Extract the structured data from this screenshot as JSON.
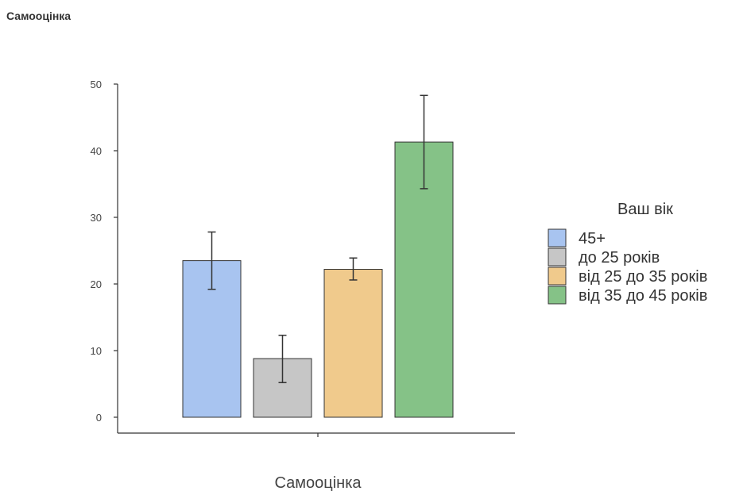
{
  "page_title": "Самооцінка",
  "chart_data": {
    "type": "bar",
    "title": "Самооцінка",
    "categories": [
      "Самооцінка"
    ],
    "xlabel": "Самооцінка",
    "ylabel": "",
    "ylim": [
      0,
      50
    ],
    "yticks": [
      0,
      10,
      20,
      30,
      40,
      50
    ],
    "legend": {
      "title": "Ваш вік",
      "position": "right"
    },
    "grid": false,
    "series": [
      {
        "name": "45+",
        "color": "#a8c4f0",
        "values": [
          23.5
        ],
        "error": [
          [
            19.2,
            27.8
          ]
        ]
      },
      {
        "name": "до 25 років",
        "color": "#c6c6c6",
        "values": [
          8.8
        ],
        "error": [
          [
            5.2,
            12.3
          ]
        ]
      },
      {
        "name": "від 25 до 35 років",
        "color": "#f0ca8c",
        "values": [
          22.2
        ],
        "error": [
          [
            20.6,
            23.9
          ]
        ]
      },
      {
        "name": "від 35 до 45 років",
        "color": "#85c287",
        "values": [
          41.3
        ],
        "error": [
          [
            34.3,
            48.3
          ]
        ]
      }
    ]
  }
}
